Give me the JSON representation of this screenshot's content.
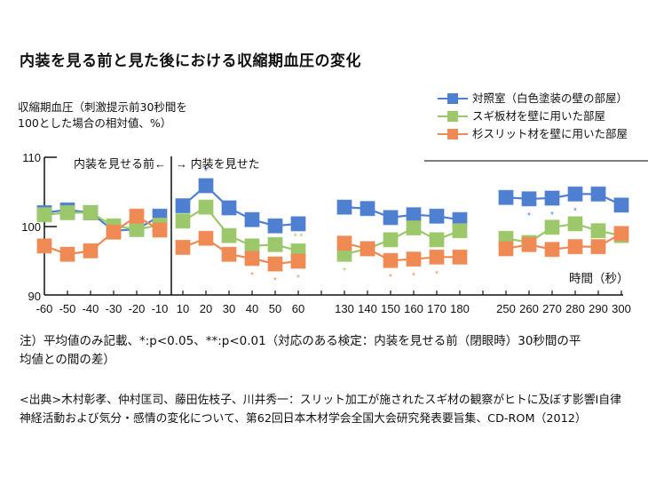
{
  "title": "内装を見る前と見た後における収縮期血圧の変化",
  "ylabel_lines": [
    "収縮期血圧（刺激提示前30秒間を",
    "100とした場合の相対値、%）"
  ],
  "legend": [
    {
      "label": "対照室（白色塗装の壁の部屋）",
      "color": "#4f7fd1"
    },
    {
      "label": "スギ板材を壁に用いた部屋",
      "color": "#9cc76a"
    },
    {
      "label": "杉スリット材を壁に用いた部屋",
      "color": "#f08a55"
    }
  ],
  "annotations": {
    "before": "内装を見せる前←",
    "after": "→ 内装を見せた",
    "xlabel": "時間（秒）"
  },
  "note_lines": [
    "注）平均値のみ記載、*:p<0.05、**:p<0.01（対応のある検定：内装を見せる前（閉眼時）30秒間の平",
    "均値との間の差）"
  ],
  "source_lines": [
    "<出典>木村彰孝、仲村匡司、藤田佐枝子、川井秀一：スリット加工が施されたスギ材の観察がヒトに及ぼす影響Ⅰ自律",
    "神経活動および気分・感情の変化について、第62回日本木材学会全国大会研究発表要旨集、CD-ROM（2012）"
  ],
  "chart_data": {
    "type": "line",
    "title": "内装を見る前と見た後における収縮期血圧の変化",
    "xlabel": "時間（秒）",
    "ylabel": "収縮期血圧（刺激提示前30秒間を100とした場合の相対値、%）",
    "ylim": [
      90,
      110
    ],
    "yticks": [
      90,
      100,
      110
    ],
    "grid": false,
    "legend_position": "top-right",
    "x": [
      -60,
      -50,
      -40,
      -30,
      -20,
      -10,
      10,
      20,
      30,
      40,
      50,
      60,
      130,
      140,
      150,
      160,
      170,
      180,
      250,
      260,
      270,
      280,
      290,
      300
    ],
    "x_tick_labels": [
      "-60",
      "-50",
      "-40",
      "-30",
      "-20",
      "-10",
      "10",
      "20",
      "30",
      "40",
      "50",
      "60",
      "130",
      "140",
      "150",
      "160",
      "170",
      "180",
      "250",
      "260",
      "270",
      "280",
      "290",
      "300"
    ],
    "segments": [
      [
        -60,
        -10
      ],
      [
        10,
        60
      ],
      [
        130,
        180
      ],
      [
        250,
        300
      ]
    ],
    "series": [
      {
        "name": "対照室（白色塗装の壁の部屋）",
        "color": "#4f7fd1",
        "values": [
          102.0,
          102.4,
          102.0,
          99.4,
          99.6,
          101.5,
          103.0,
          105.9,
          102.7,
          101.0,
          100.1,
          100.4,
          102.8,
          102.6,
          101.3,
          101.7,
          101.5,
          101.0,
          104.2,
          104.0,
          104.1,
          104.7,
          104.7,
          103.1
        ],
        "significance": {
          "20": {
            "mark": "*",
            "pos": "above"
          },
          "260": {
            "mark": "*",
            "pos": "below"
          },
          "270": {
            "mark": "*",
            "pos": "below"
          },
          "280": {
            "mark": "*",
            "pos": "below"
          }
        }
      },
      {
        "name": "スギ板材を壁に用いた部屋",
        "color": "#9cc76a",
        "values": [
          101.7,
          102.0,
          102.0,
          100.1,
          99.6,
          100.2,
          100.8,
          102.8,
          98.7,
          97.2,
          97.4,
          96.5,
          96.0,
          96.8,
          98.1,
          99.8,
          98.1,
          99.4,
          98.3,
          97.7,
          99.9,
          100.4,
          99.4,
          98.7
        ],
        "significance": {
          "60": {
            "mark": "**",
            "pos": "above"
          },
          "130": {
            "mark": "*",
            "pos": "below"
          }
        }
      },
      {
        "name": "杉スリット材を壁に用いた部屋",
        "color": "#f08a55",
        "values": [
          97.2,
          96.0,
          96.5,
          99.2,
          101.5,
          99.5,
          97.0,
          98.3,
          96.0,
          95.4,
          94.6,
          95.0,
          97.6,
          96.8,
          95.1,
          95.3,
          95.6,
          95.6,
          96.8,
          97.4,
          96.7,
          97.1,
          97.1,
          99.0
        ],
        "significance": {
          "40": {
            "mark": "*",
            "pos": "below"
          },
          "50": {
            "mark": "*",
            "pos": "below"
          },
          "60": {
            "mark": "*",
            "pos": "below"
          },
          "150": {
            "mark": "*",
            "pos": "below"
          },
          "160": {
            "mark": "*",
            "pos": "below"
          },
          "170": {
            "mark": "*",
            "pos": "below"
          }
        }
      }
    ]
  }
}
